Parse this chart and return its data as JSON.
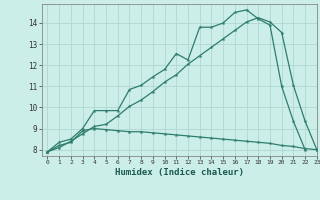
{
  "xlabel": "Humidex (Indice chaleur)",
  "background_color": "#cceee8",
  "grid_color": "#b0d8d0",
  "line_color": "#2e7d6e",
  "xlim": [
    -0.5,
    23
  ],
  "ylim": [
    7.7,
    14.9
  ],
  "xticks": [
    0,
    1,
    2,
    3,
    4,
    5,
    6,
    7,
    8,
    9,
    10,
    11,
    12,
    13,
    14,
    15,
    16,
    17,
    18,
    19,
    20,
    21,
    22,
    23
  ],
  "yticks": [
    8,
    9,
    10,
    11,
    12,
    13,
    14
  ],
  "line1_x": [
    0,
    1,
    2,
    3,
    4,
    5,
    6,
    7,
    8,
    9,
    10,
    11,
    12,
    13,
    14,
    15,
    16,
    17,
    18,
    19,
    20,
    21,
    22,
    23
  ],
  "line1_y": [
    7.9,
    8.35,
    8.5,
    9.0,
    9.85,
    9.85,
    9.85,
    10.85,
    11.05,
    11.45,
    11.8,
    12.55,
    12.25,
    13.8,
    13.8,
    14.0,
    14.5,
    14.62,
    14.2,
    13.9,
    11.0,
    9.35,
    8.0,
    null
  ],
  "line2_x": [
    0,
    1,
    2,
    3,
    4,
    5,
    6,
    7,
    8,
    9,
    10,
    11,
    12,
    13,
    14,
    15,
    16,
    17,
    18,
    19,
    20,
    21,
    22,
    23
  ],
  "line2_y": [
    7.9,
    8.1,
    8.4,
    8.75,
    9.1,
    9.2,
    9.6,
    10.05,
    10.35,
    10.75,
    11.2,
    11.55,
    12.05,
    12.45,
    12.85,
    13.25,
    13.65,
    14.05,
    14.25,
    14.05,
    13.55,
    11.05,
    9.35,
    8.0
  ],
  "line3_x": [
    0,
    1,
    2,
    3,
    4,
    5,
    6,
    7,
    8,
    9,
    10,
    11,
    12,
    13,
    14,
    15,
    16,
    17,
    18,
    19,
    20,
    21,
    22,
    23
  ],
  "line3_y": [
    7.9,
    8.2,
    8.35,
    8.9,
    9.0,
    8.95,
    8.9,
    8.85,
    8.85,
    8.8,
    8.75,
    8.7,
    8.65,
    8.6,
    8.55,
    8.5,
    8.45,
    8.4,
    8.35,
    8.3,
    8.2,
    8.15,
    8.05,
    8.0
  ]
}
